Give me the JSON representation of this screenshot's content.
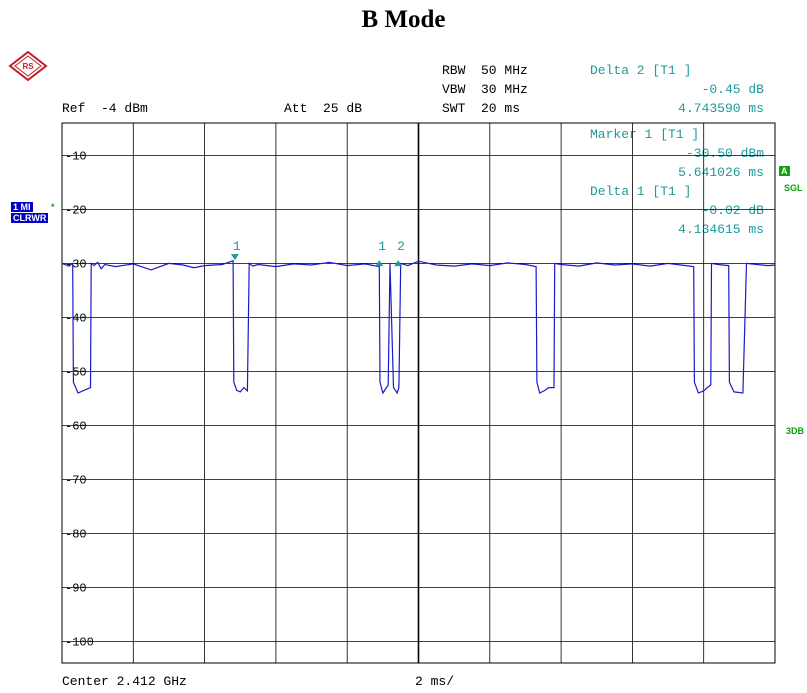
{
  "chart_data": {
    "type": "line",
    "title": "B Mode",
    "ref_level": "Ref  -4 dBm",
    "attenuation": "Att  25 dB",
    "rbw": "RBW  50 MHz",
    "vbw": "VBW  30 MHz",
    "swt": "SWT  20 ms",
    "center_label": "Center 2.412 GHz",
    "span_label": "2 ms/",
    "y_unit": "dBm",
    "xlim": [
      0,
      20
    ],
    "ylim": [
      -104,
      -4
    ],
    "y_ticks": [
      {
        "label": "-10",
        "value": -10
      },
      {
        "label": "-20",
        "value": -20
      },
      {
        "label": "-30",
        "value": -30
      },
      {
        "label": "-40",
        "value": -40
      },
      {
        "label": "-50",
        "value": -50
      },
      {
        "label": "-60",
        "value": -60
      },
      {
        "label": "-70",
        "value": -70
      },
      {
        "label": "-80",
        "value": -80
      },
      {
        "label": "-90",
        "value": -90
      },
      {
        "label": "-100",
        "value": -100
      }
    ],
    "grid": true,
    "series": [
      {
        "color": "#1a1acc",
        "x": [
          0.0,
          0.2,
          0.3,
          0.32,
          0.45,
          0.8,
          0.82,
          0.9,
          1.0,
          1.1,
          1.2,
          1.5,
          2.0,
          2.5,
          3.0,
          3.4,
          3.7,
          4.0,
          4.5,
          4.8,
          4.82,
          4.9,
          5.0,
          5.1,
          5.2,
          5.25,
          5.35,
          5.5,
          6.0,
          6.5,
          7.0,
          7.5,
          8.0,
          8.5,
          8.9,
          8.92,
          9.0,
          9.15,
          9.2,
          9.3,
          9.4,
          9.45,
          9.5,
          9.7,
          10.0,
          10.5,
          11.0,
          11.5,
          12.0,
          12.5,
          13.0,
          13.3,
          13.32,
          13.4,
          13.55,
          13.65,
          13.8,
          13.82,
          14.0,
          14.5,
          15.0,
          15.5,
          16.0,
          16.5,
          17.0,
          17.5,
          17.72,
          17.74,
          17.85,
          18.0,
          18.1,
          18.2,
          18.22,
          18.4,
          18.7,
          18.72,
          18.85,
          19.1,
          19.2,
          19.8,
          20.0
        ],
        "y": [
          -30,
          -30.5,
          -30,
          -52,
          -54,
          -53,
          -30,
          -30.4,
          -29.8,
          -31,
          -30.2,
          -30.6,
          -30.1,
          -31.2,
          -30,
          -30.3,
          -30.8,
          -30.4,
          -30.2,
          -29.5,
          -52,
          -53.5,
          -53.8,
          -53,
          -53.6,
          -30,
          -30.5,
          -30.2,
          -30.6,
          -30.1,
          -30.3,
          -29.8,
          -30.4,
          -30.1,
          -30.6,
          -52,
          -54,
          -52.5,
          -30,
          -53,
          -54,
          -53,
          -30,
          -30.4,
          -29.6,
          -30.3,
          -30.5,
          -30.1,
          -30.4,
          -29.9,
          -30.2,
          -30.6,
          -52,
          -54,
          -53.5,
          -53,
          -53,
          -30,
          -30.2,
          -30.5,
          -29.9,
          -30.3,
          -30.1,
          -30.5,
          -30,
          -30.4,
          -30.6,
          -52,
          -54,
          -53.6,
          -53,
          -52.5,
          -30,
          -30.2,
          -30.4,
          -52,
          -53.8,
          -54,
          -30,
          -30.4,
          -30.3
        ]
      }
    ],
    "markers": [
      {
        "label": "1",
        "x": 4.85,
        "y": -29.4,
        "kind": "down"
      },
      {
        "label": "1",
        "x": 8.9,
        "y": -29.4,
        "kind": "up"
      },
      {
        "label": "2",
        "x": 9.43,
        "y": -29.4,
        "kind": "up"
      }
    ]
  },
  "readouts": {
    "delta2": {
      "title": "Delta 2 [T1 ]",
      "value": "-0.45 dB",
      "time": "4.743590 ms"
    },
    "marker1": {
      "title": "Marker 1 [T1 ]",
      "value": "-30.50 dBm",
      "time": "5.641026 ms"
    },
    "delta1": {
      "title": "Delta 1 [T1 ]",
      "value": "-0.02 dB",
      "time": "4.134615 ms"
    }
  },
  "side_labels": {
    "trace": "1 MI",
    "trace_mode": "CLRWR",
    "trace_marker": "*",
    "a_badge": "A",
    "sgl": "SGL",
    "db3": "3DB"
  },
  "colors": {
    "trace": "#1a1acc",
    "marker": "#1e9a9a",
    "grid": "#000000"
  },
  "logo": {
    "icon": "rohde-schwarz-diamond-icon",
    "text": "RS"
  }
}
